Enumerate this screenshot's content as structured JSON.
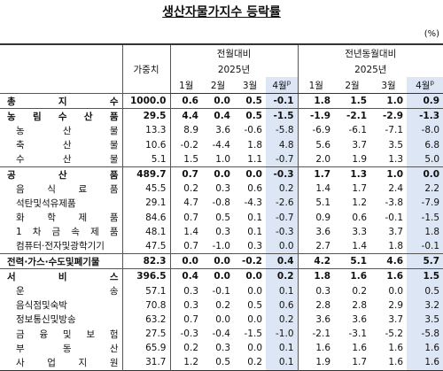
{
  "header": {
    "title": "생산자물가지수 등락률",
    "unit": "(%)"
  },
  "table": {
    "weight_header": "가중치",
    "groups": [
      {
        "label": "전월대비",
        "year": "2025년",
        "months": [
          {
            "label": "1월"
          },
          {
            "label": "2월"
          },
          {
            "label": "3월"
          },
          {
            "label": "4월",
            "sup": "p"
          }
        ]
      },
      {
        "label": "전년동월대비",
        "year": "2025년",
        "months": [
          {
            "label": "1월"
          },
          {
            "label": "2월"
          },
          {
            "label": "3월"
          },
          {
            "label": "4월",
            "sup": "p"
          }
        ]
      }
    ],
    "rows": [
      {
        "label": "총 지 수",
        "bold": true,
        "weight": "1000.0",
        "values": [
          "0.6",
          "0.0",
          "0.5",
          "-0.1",
          "1.8",
          "1.5",
          "1.0",
          "0.9"
        ]
      },
      {
        "label": "농 림 수 산 품",
        "bold": true,
        "weight": "29.5",
        "values": [
          "4.4",
          "0.4",
          "0.5",
          "-1.5",
          "-1.9",
          "-2.1",
          "-2.9",
          "-1.3"
        ]
      },
      {
        "label": "농 산 물",
        "weight": "13.3",
        "values": [
          "8.9",
          "3.6",
          "-0.6",
          "-5.8",
          "-6.9",
          "-6.1",
          "-7.1",
          "-8.0"
        ]
      },
      {
        "label": "축 산 물",
        "weight": "10.6",
        "values": [
          "-0.2",
          "-4.4",
          "1.8",
          "4.8",
          "5.6",
          "3.7",
          "3.5",
          "6.8"
        ]
      },
      {
        "label": "수 산 물",
        "weight": "5.1",
        "values": [
          "1.5",
          "1.0",
          "1.1",
          "-0.7",
          "2.0",
          "1.9",
          "1.3",
          "5.0"
        ]
      },
      {
        "label": "공 산 품",
        "bold": true,
        "weight": "489.7",
        "values": [
          "0.7",
          "0.0",
          "0.0",
          "-0.3",
          "1.7",
          "1.3",
          "1.0",
          "0.0"
        ]
      },
      {
        "label": "음 식 료 품",
        "weight": "45.5",
        "values": [
          "0.2",
          "0.3",
          "0.6",
          "0.2",
          "1.4",
          "1.7",
          "2.4",
          "2.2"
        ]
      },
      {
        "label": "석탄및석유제품",
        "weight": "29.1",
        "values": [
          "4.7",
          "-0.8",
          "-4.3",
          "-2.6",
          "5.1",
          "1.2",
          "-3.8",
          "-7.9"
        ]
      },
      {
        "label": "화 학 제 품",
        "weight": "84.6",
        "values": [
          "0.7",
          "0.5",
          "0.1",
          "-0.7",
          "0.9",
          "0.6",
          "-0.1",
          "-1.5"
        ]
      },
      {
        "label": "1 차 금 속 제 품",
        "weight": "48.1",
        "values": [
          "1.4",
          "0.3",
          "0.1",
          "-0.3",
          "3.6",
          "3.3",
          "3.7",
          "1.8"
        ]
      },
      {
        "label": "컴퓨터·전자및광학기기",
        "weight": "47.5",
        "values": [
          "0.7",
          "-1.0",
          "0.3",
          "0.0",
          "2.7",
          "1.4",
          "1.8",
          "-0.1"
        ]
      },
      {
        "label": "전력·가스·수도및폐기물",
        "bold": true,
        "weight": "82.3",
        "values": [
          "0.0",
          "0.0",
          "-0.2",
          "0.4",
          "4.2",
          "5.1",
          "4.6",
          "5.7"
        ]
      },
      {
        "label": "서 비 스",
        "bold": true,
        "weight": "396.5",
        "values": [
          "0.4",
          "0.0",
          "0.0",
          "0.2",
          "1.8",
          "1.6",
          "1.6",
          "1.5"
        ]
      },
      {
        "label": "운 송",
        "weight": "57.1",
        "values": [
          "0.3",
          "-0.1",
          "0.0",
          "0.1",
          "0.3",
          "0.2",
          "0.0",
          "0.5"
        ]
      },
      {
        "label": "음식점및숙박",
        "weight": "70.8",
        "values": [
          "0.3",
          "0.2",
          "0.5",
          "0.6",
          "2.8",
          "2.8",
          "2.9",
          "3.2"
        ]
      },
      {
        "label": "정보통신및방송",
        "weight": "63.2",
        "values": [
          "0.7",
          "0.0",
          "0.0",
          "0.2",
          "3.6",
          "3.6",
          "3.7",
          "3.5"
        ]
      },
      {
        "label": "금 융 및 보 험",
        "weight": "27.5",
        "values": [
          "-0.3",
          "-0.4",
          "-1.5",
          "-1.0",
          "-2.1",
          "-3.1",
          "-5.2",
          "-5.8"
        ]
      },
      {
        "label": "부 동 산",
        "weight": "65.9",
        "values": [
          "0.2",
          "0.3",
          "0.0",
          "0.1",
          "1.6",
          "1.6",
          "1.6",
          "1.6"
        ]
      },
      {
        "label": "사 업 지 원",
        "weight": "31.7",
        "values": [
          "1.2",
          "0.5",
          "0.2",
          "0.1",
          "1.9",
          "1.7",
          "1.6",
          "1.6"
        ]
      }
    ]
  }
}
